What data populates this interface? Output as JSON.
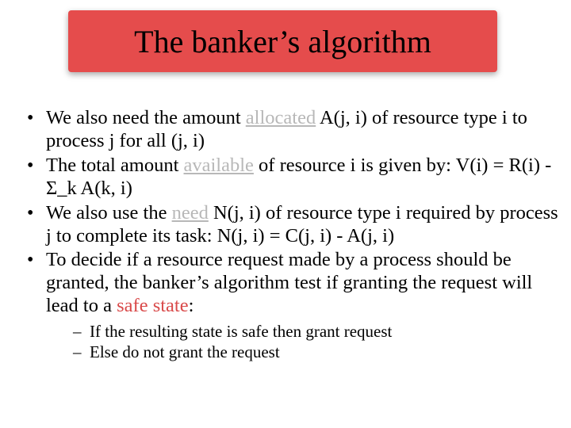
{
  "colors": {
    "title_bg": "#e54c4c",
    "title_text": "#000000",
    "body_text": "#000000",
    "faded_underline": "#b8b8b8",
    "highlight": "#d94a4a",
    "page_bg": "#ffffff"
  },
  "fonts": {
    "family": "Times New Roman",
    "title_size_pt": 40,
    "bullet_size_pt": 24,
    "sub_size_pt": 21
  },
  "title": "The banker’s algorithm",
  "bullets": {
    "b1_pre": "We also need the amount ",
    "b1_u": "allocated",
    "b1_post": " A(j, i) of resource type i to process j for all (j, i)",
    "b2_pre": "The total amount ",
    "b2_u": "available",
    "b2_post": " of resource i is given by: V(i) = R(i) - Σ_k A(k, i)",
    "b3_pre": "We also use the ",
    "b3_u": "need",
    "b3_post": " N(j, i) of resource type i required by process j to complete its task: N(j, i) = C(j, i) - A(j, i)",
    "b4_pre": "To decide if a resource request made by a process should be granted, the banker’s algorithm test if granting the request will lead to a ",
    "b4_hl": "safe state",
    "b4_post": ":"
  },
  "subs": {
    "s1": "If the resulting state is safe then grant request",
    "s2": "Else do not grant the request"
  }
}
